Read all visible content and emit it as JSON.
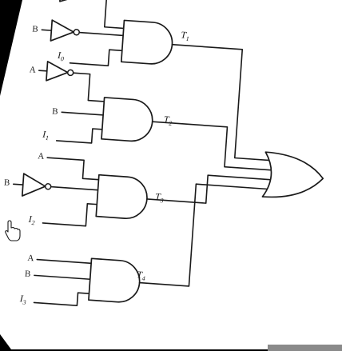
{
  "diagram": {
    "outputs": [
      {
        "letter": "T",
        "sub": "1"
      },
      {
        "letter": "T",
        "sub": "2"
      },
      {
        "letter": "T",
        "sub": "3"
      },
      {
        "letter": "T",
        "sub": "4"
      }
    ],
    "inputs": {
      "g1_b": "B",
      "g1_i": {
        "letter": "I",
        "sub": "0"
      },
      "g2_a": "A",
      "g2_b": "B",
      "g2_i": {
        "letter": "I",
        "sub": "1"
      },
      "g3_a": "A",
      "g3_b": "B",
      "g3_i": {
        "letter": "I",
        "sub": "2"
      },
      "g4_a": "A",
      "g4_b": "B",
      "g4_i": {
        "letter": "I",
        "sub": "3"
      }
    },
    "colors": {
      "background": "#000000",
      "paper": "#ffffff",
      "ink": "#1a1a1a",
      "corner_patch": "#8a8a8a"
    },
    "icons": [
      "hand-pointer-icon"
    ]
  }
}
